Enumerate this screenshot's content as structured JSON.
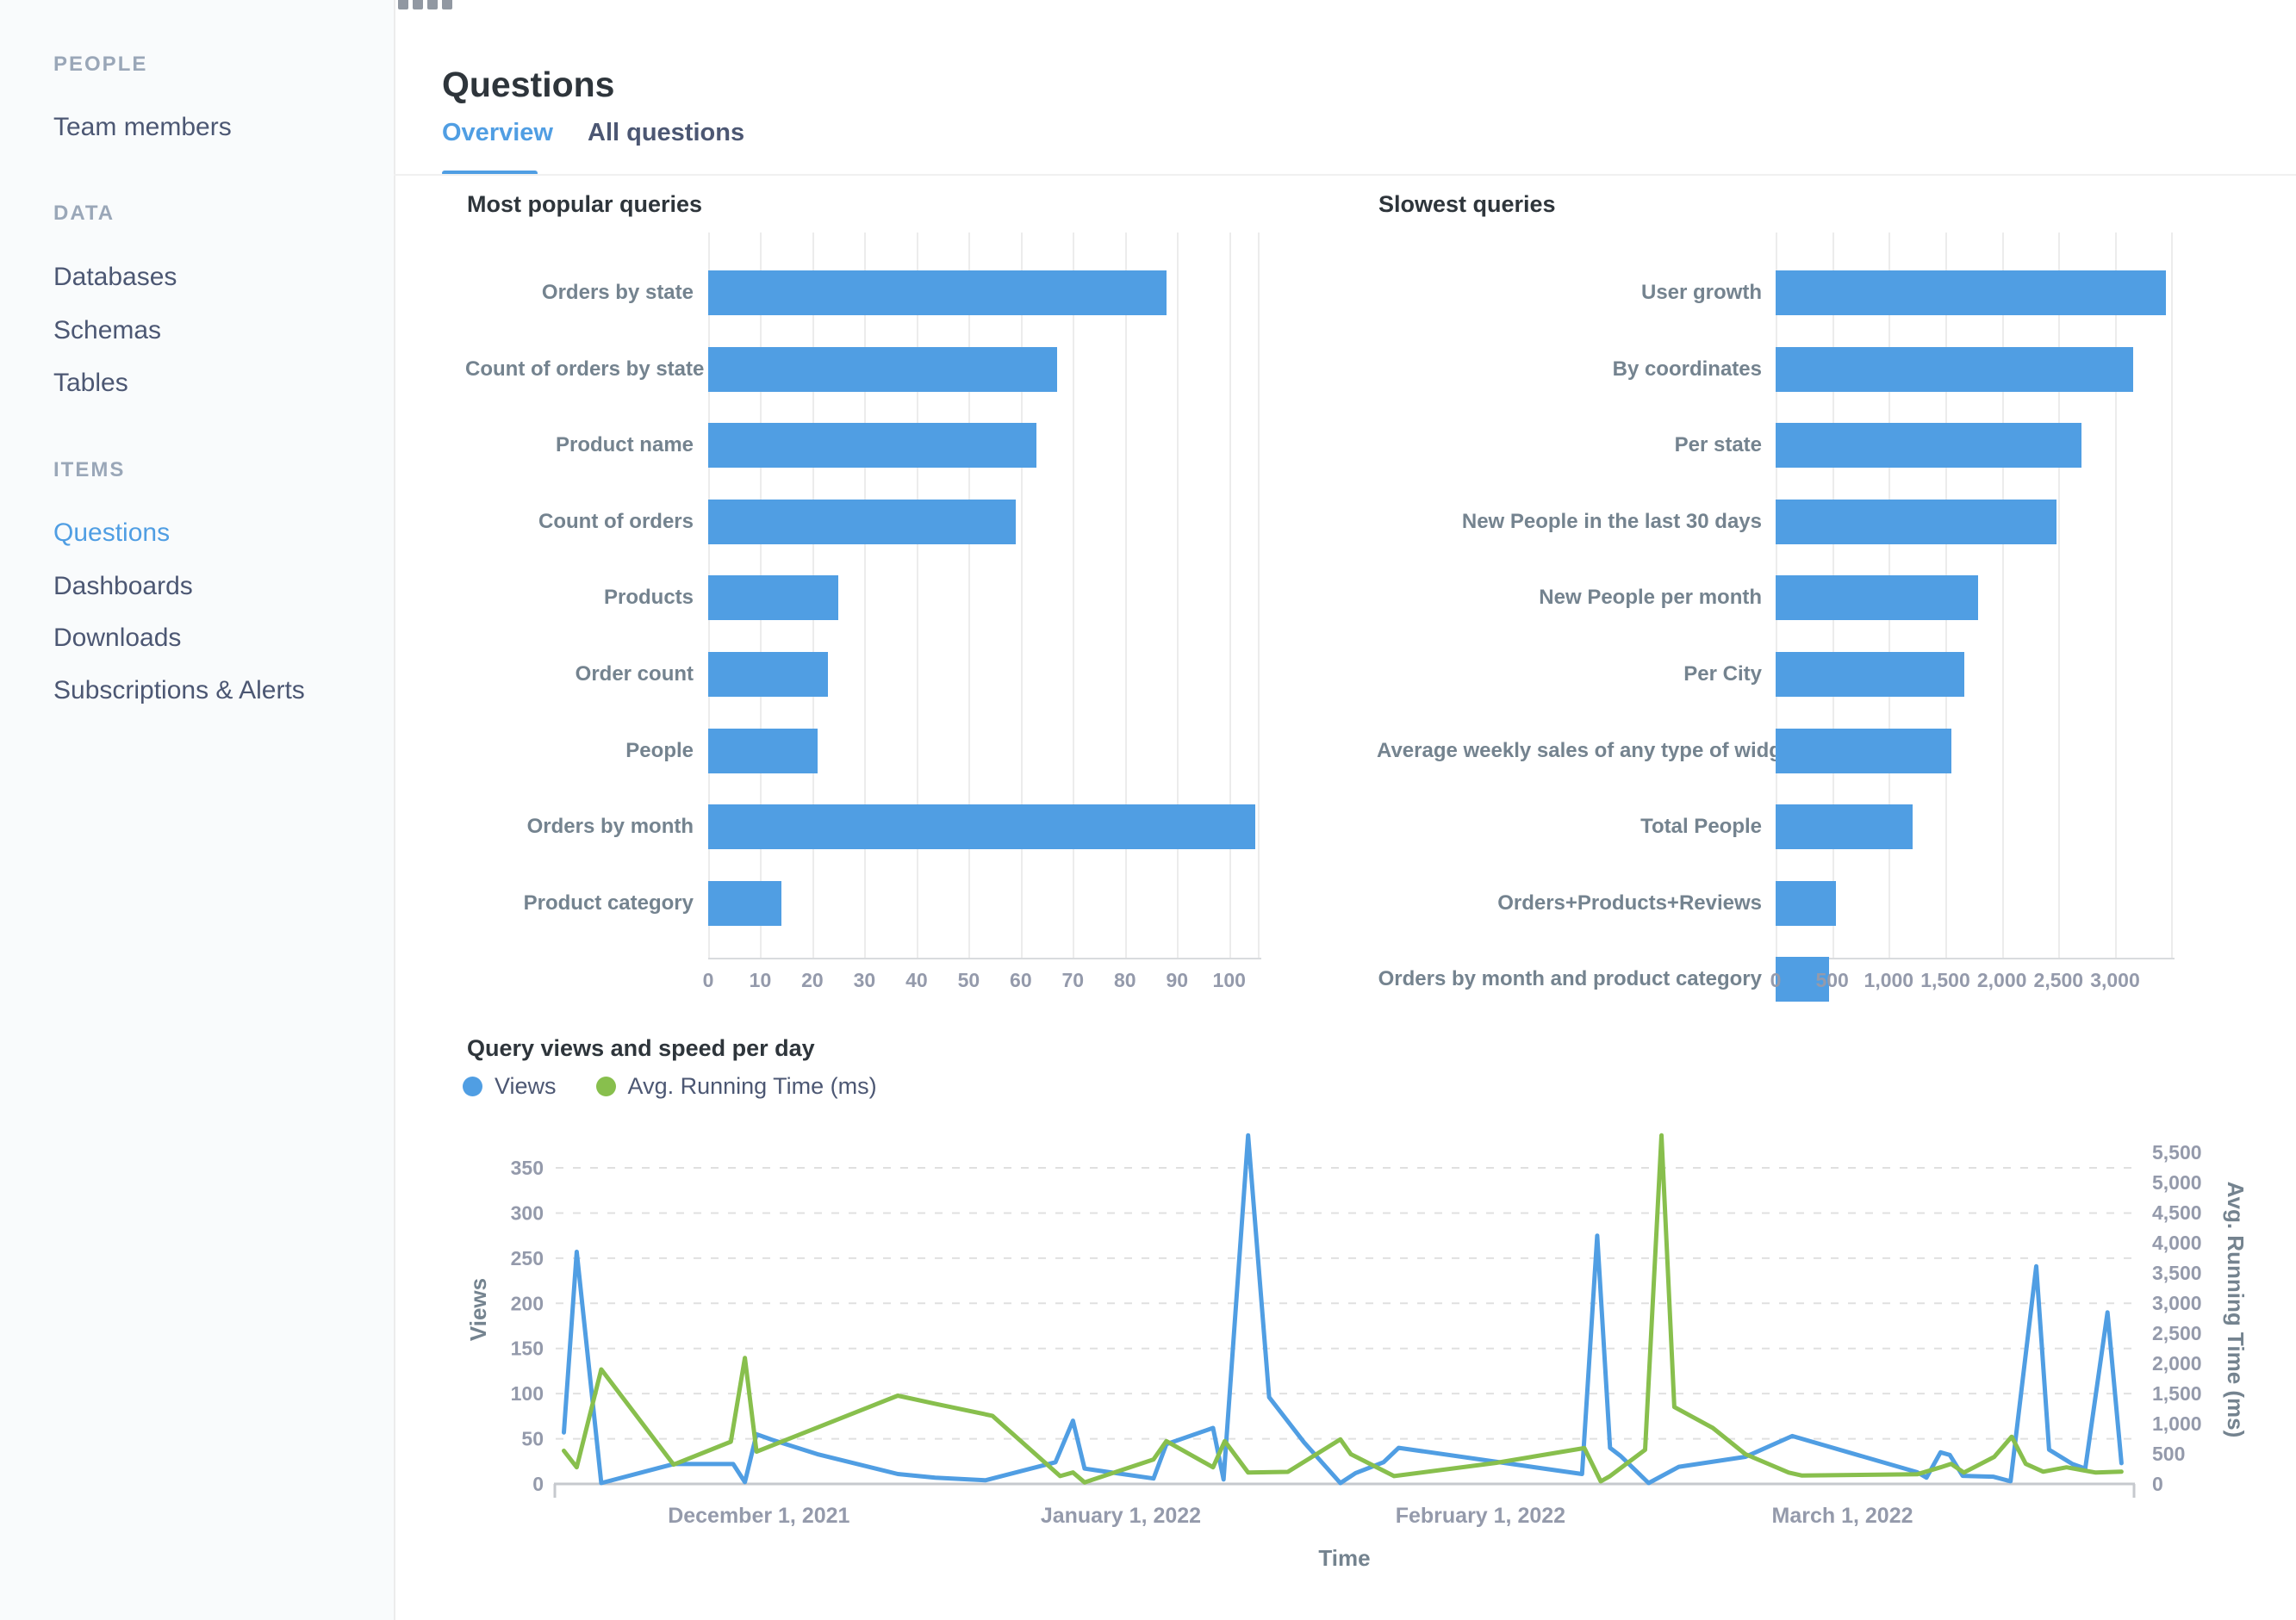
{
  "sidebar": {
    "sections": [
      {
        "header": "PEOPLE",
        "items": [
          {
            "label": "Team members",
            "active": false
          }
        ]
      },
      {
        "header": "DATA",
        "items": [
          {
            "label": "Databases",
            "active": false
          },
          {
            "label": "Schemas",
            "active": false
          },
          {
            "label": "Tables",
            "active": false
          }
        ]
      },
      {
        "header": "ITEMS",
        "items": [
          {
            "label": "Questions",
            "active": true
          },
          {
            "label": "Dashboards",
            "active": false
          },
          {
            "label": "Downloads",
            "active": false
          },
          {
            "label": "Subscriptions & Alerts",
            "active": false
          }
        ]
      }
    ]
  },
  "header": {
    "title": "Questions",
    "tabs": [
      {
        "label": "Overview",
        "active": true
      },
      {
        "label": "All questions",
        "active": false
      }
    ]
  },
  "colors": {
    "accent_blue": "#509EE3",
    "accent_green": "#88BF4D",
    "bar_fill": "#509EE3",
    "text_dark": "#2E353B",
    "text_body": "#4C5773",
    "label_gray": "#74838F",
    "tick_gray": "#949AAB"
  },
  "chart_data": [
    {
      "type": "bar",
      "orientation": "horizontal",
      "title": "Most popular queries",
      "categories": [
        "Orders by state",
        "Count of orders by state",
        "Product name",
        "Count of orders",
        "Products",
        "Order count",
        "People",
        "Orders by month",
        "Product category"
      ],
      "values": [
        88,
        67,
        63,
        59,
        25,
        23,
        21,
        105,
        14
      ],
      "xlabel": "",
      "ylabel": "",
      "xlim": [
        0,
        105.5
      ],
      "xtick_step": 10,
      "xtick_labels": [
        "0",
        "10",
        "20",
        "30",
        "40",
        "50",
        "60",
        "70",
        "80",
        "90",
        "100"
      ],
      "grid": true,
      "bar_color": "#509EE3"
    },
    {
      "type": "bar",
      "orientation": "horizontal",
      "title": "Slowest queries",
      "categories": [
        "User growth",
        "By coordinates",
        "Per state",
        "New People in the last 30 days",
        "New People per month",
        "Per City",
        "Average weekly sales of any type of widget",
        "Total People",
        "Orders+Products+Reviews",
        "Orders by month and product category"
      ],
      "values": [
        3450,
        3160,
        2700,
        2480,
        1790,
        1670,
        1550,
        1210,
        530,
        470
      ],
      "xlabel": "",
      "ylabel": "",
      "xlim": [
        0,
        3495
      ],
      "xtick_step": 500,
      "xtick_labels": [
        "0",
        "500",
        "1,000",
        "1,500",
        "2,000",
        "2,500",
        "3,000"
      ],
      "grid": true,
      "bar_color": "#509EE3"
    },
    {
      "type": "line",
      "title": "Query views and speed per day",
      "xlabel": "Time",
      "x_range_days": [
        0,
        135.1
      ],
      "x_ticks": [
        {
          "t": 17.4,
          "label": "December 1, 2021"
        },
        {
          "t": 48.4,
          "label": "January 1, 2022"
        },
        {
          "t": 79.2,
          "label": "February 1, 2022"
        },
        {
          "t": 110.2,
          "label": "March 1, 2022"
        }
      ],
      "y_left": {
        "label": "Views",
        "lim": [
          0,
          392
        ],
        "ticks": [
          "0",
          "50",
          "100",
          "150",
          "200",
          "250",
          "300",
          "350"
        ],
        "tick_step": 50
      },
      "y_right": {
        "label": "Avg. Running Time (ms)",
        "lim": [
          0,
          5870
        ],
        "ticks": [
          "0",
          "500",
          "1,000",
          "1,500",
          "2,000",
          "2,500",
          "3,000",
          "3,500",
          "4,000",
          "4,500",
          "5,000",
          "5,500"
        ],
        "tick_step": 500
      },
      "grid": "horizontal-dashed",
      "legend_position": "top-left",
      "series": [
        {
          "name": "Views",
          "color": "#509EE3",
          "axis": "left",
          "points": [
            [
              0.7,
              57
            ],
            [
              1.8,
              257
            ],
            [
              3.9,
              1
            ],
            [
              10.1,
              22
            ],
            [
              15.2,
              22
            ],
            [
              16.2,
              2
            ],
            [
              17.2,
              55
            ],
            [
              18.5,
              49
            ],
            [
              22.4,
              33
            ],
            [
              29.3,
              11
            ],
            [
              32.5,
              7
            ],
            [
              36.8,
              4
            ],
            [
              42.8,
              24
            ],
            [
              44.3,
              70
            ],
            [
              45.3,
              17
            ],
            [
              51.2,
              6
            ],
            [
              52.3,
              44
            ],
            [
              56.3,
              62
            ],
            [
              57.2,
              5
            ],
            [
              59.3,
              386
            ],
            [
              61.1,
              96
            ],
            [
              64.1,
              46
            ],
            [
              67.2,
              1
            ],
            [
              68.5,
              12
            ],
            [
              70.9,
              24
            ],
            [
              72.2,
              40
            ],
            [
              87.9,
              11
            ],
            [
              89.2,
              275
            ],
            [
              90.3,
              40
            ],
            [
              91.2,
              31
            ],
            [
              93.6,
              1
            ],
            [
              96.2,
              19
            ],
            [
              101.9,
              30
            ],
            [
              105.9,
              53
            ],
            [
              116.6,
              13
            ],
            [
              117.4,
              7
            ],
            [
              118.6,
              35
            ],
            [
              119.4,
              32
            ],
            [
              120.5,
              9
            ],
            [
              123.1,
              8
            ],
            [
              124.6,
              3
            ],
            [
              126.8,
              241
            ],
            [
              127.9,
              38
            ],
            [
              129.9,
              22
            ],
            [
              131.0,
              17
            ],
            [
              132.9,
              190
            ],
            [
              134.1,
              23
            ]
          ]
        },
        {
          "name": "Avg. Running Time (ms)",
          "color": "#88BF4D",
          "axis": "right",
          "points": [
            [
              0.7,
              550
            ],
            [
              1.8,
              275
            ],
            [
              3.9,
              1900
            ],
            [
              10.1,
              320
            ],
            [
              15.0,
              700
            ],
            [
              16.2,
              2090
            ],
            [
              17.2,
              536
            ],
            [
              29.3,
              1464
            ],
            [
              32.5,
              1330
            ],
            [
              37.4,
              1130
            ],
            [
              43.2,
              130
            ],
            [
              44.3,
              190
            ],
            [
              45.3,
              25
            ],
            [
              51.2,
              406
            ],
            [
              52.3,
              710
            ],
            [
              56.3,
              275
            ],
            [
              57.3,
              710
            ],
            [
              59.3,
              190
            ],
            [
              62.7,
              200
            ],
            [
              67.2,
              740
            ],
            [
              68.1,
              493
            ],
            [
              71.8,
              130
            ],
            [
              80.5,
              348
            ],
            [
              88.1,
              594
            ],
            [
              89.5,
              43
            ],
            [
              90.3,
              130
            ],
            [
              93.3,
              565
            ],
            [
              94.7,
              5780
            ],
            [
              95.8,
              1275
            ],
            [
              99.1,
              928
            ],
            [
              101.9,
              493
            ],
            [
              105.6,
              188
            ],
            [
              106.7,
              140
            ],
            [
              116.6,
              160
            ],
            [
              118.6,
              275
            ],
            [
              119.5,
              333
            ],
            [
              120.6,
              188
            ],
            [
              123.2,
              449
            ],
            [
              124.7,
              783
            ],
            [
              125.9,
              333
            ],
            [
              127.4,
              203
            ],
            [
              129.4,
              275
            ],
            [
              131.9,
              188
            ],
            [
              134.1,
              203
            ]
          ]
        }
      ]
    }
  ]
}
